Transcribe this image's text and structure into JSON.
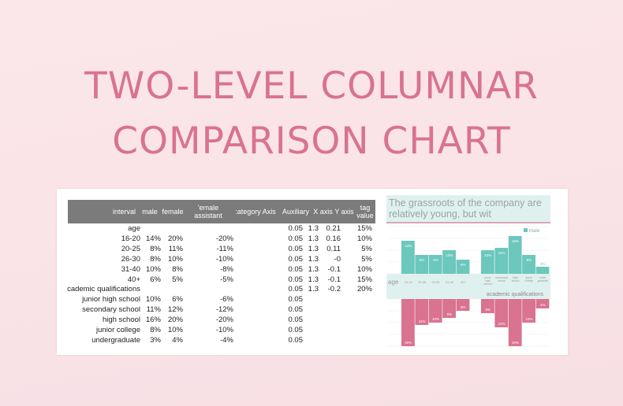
{
  "title": {
    "line1": "TWO-LEVEL COLUMNAR",
    "line2": "COMPARISON CHART"
  },
  "table": {
    "headers": [
      "interval",
      "male",
      "female",
      "'emale assistant",
      ":ategory Axis",
      "Auxiliary",
      "X axis",
      "Y axis",
      "tag value"
    ],
    "rows": [
      [
        "age",
        "",
        "",
        "",
        "0.05",
        "1.3",
        "0.21",
        "15%"
      ],
      [
        "16-20",
        "14%",
        "20%",
        "-20%",
        "0.05",
        "1.3",
        "0.16",
        "10%"
      ],
      [
        "20-25",
        "8%",
        "11%",
        "-11%",
        "0.05",
        "1.3",
        "0.11",
        "5%"
      ],
      [
        "26-30",
        "8%",
        "10%",
        "-10%",
        "0.05",
        "1.3",
        "-0",
        "5%"
      ],
      [
        "31-40",
        "10%",
        "8%",
        "-8%",
        "0.05",
        "1.3",
        "-0.1",
        "10%"
      ],
      [
        "40+",
        "6%",
        "5%",
        "-5%",
        "0.05",
        "1.3",
        "-0.1",
        "15%"
      ],
      [
        "cademic qualifications",
        "",
        "",
        "",
        "0.05",
        "1.3",
        "-0.2",
        "20%"
      ],
      [
        "junior high school",
        "10%",
        "6%",
        "-6%",
        "0.05",
        "",
        "",
        ""
      ],
      [
        "secondary school",
        "11%",
        "12%",
        "-12%",
        "0.05",
        "",
        "",
        ""
      ],
      [
        "high school",
        "16%",
        "20%",
        "-20%",
        "0.05",
        "",
        "",
        ""
      ],
      [
        "junior college",
        "8%",
        "10%",
        "-10%",
        "0.05",
        "",
        "",
        ""
      ],
      [
        "undergraduate",
        "3%",
        "4%",
        "-4%",
        "0.05",
        "",
        "",
        ""
      ]
    ]
  },
  "overlay_text": "The grassroots of the company are relatively young, but wit",
  "chart_data": {
    "type": "bar",
    "legend": [
      "male"
    ],
    "groups": [
      {
        "label": "age",
        "categories": [
          "16-20",
          "20-25",
          "26-30",
          "31-40",
          "40+"
        ],
        "male": [
          14,
          8,
          8,
          10,
          6
        ],
        "female": [
          20,
          11,
          10,
          8,
          5
        ]
      },
      {
        "label": "academic qualifications",
        "categories": [
          "junior high school",
          "secondary school",
          "high school",
          "junior college",
          "undergraduate"
        ],
        "male": [
          10,
          11,
          16,
          8,
          3
        ],
        "female": [
          6,
          12,
          20,
          10,
          4
        ]
      }
    ],
    "colors": {
      "male": "#6cc7bd",
      "female": "#d9738f"
    },
    "unit": "%"
  }
}
